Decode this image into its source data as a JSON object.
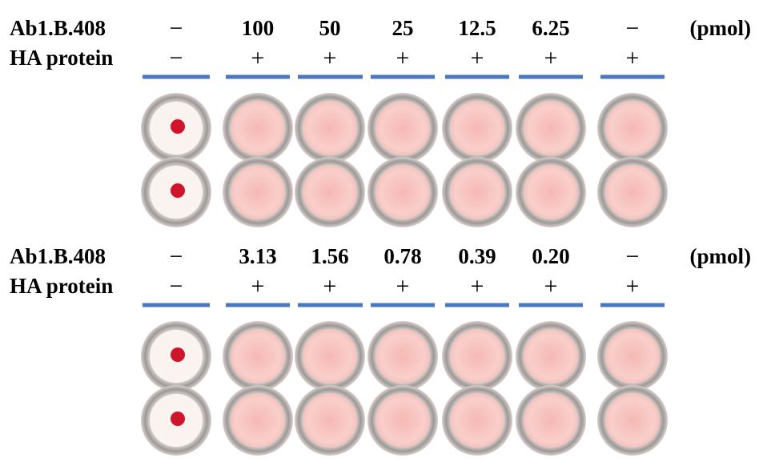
{
  "panels": [
    {
      "antibody_label": "Ab1.B.408",
      "protein_label": "HA protein",
      "antibody_amounts": [
        "−",
        "100",
        "50",
        "25",
        "12.5",
        "6.25",
        "−"
      ],
      "unit": "(pmol)",
      "protein_presence": [
        "−",
        "+",
        "+",
        "+",
        "+",
        "+",
        "+"
      ]
    },
    {
      "antibody_label": "Ab1.B.408",
      "protein_label": "HA protein",
      "antibody_amounts": [
        "−",
        "3.13",
        "1.56",
        "0.78",
        "0.39",
        "0.20",
        "−"
      ],
      "unit": "(pmol)",
      "protein_presence": [
        "−",
        "+",
        "+",
        "+",
        "+",
        "+",
        "+"
      ]
    }
  ]
}
